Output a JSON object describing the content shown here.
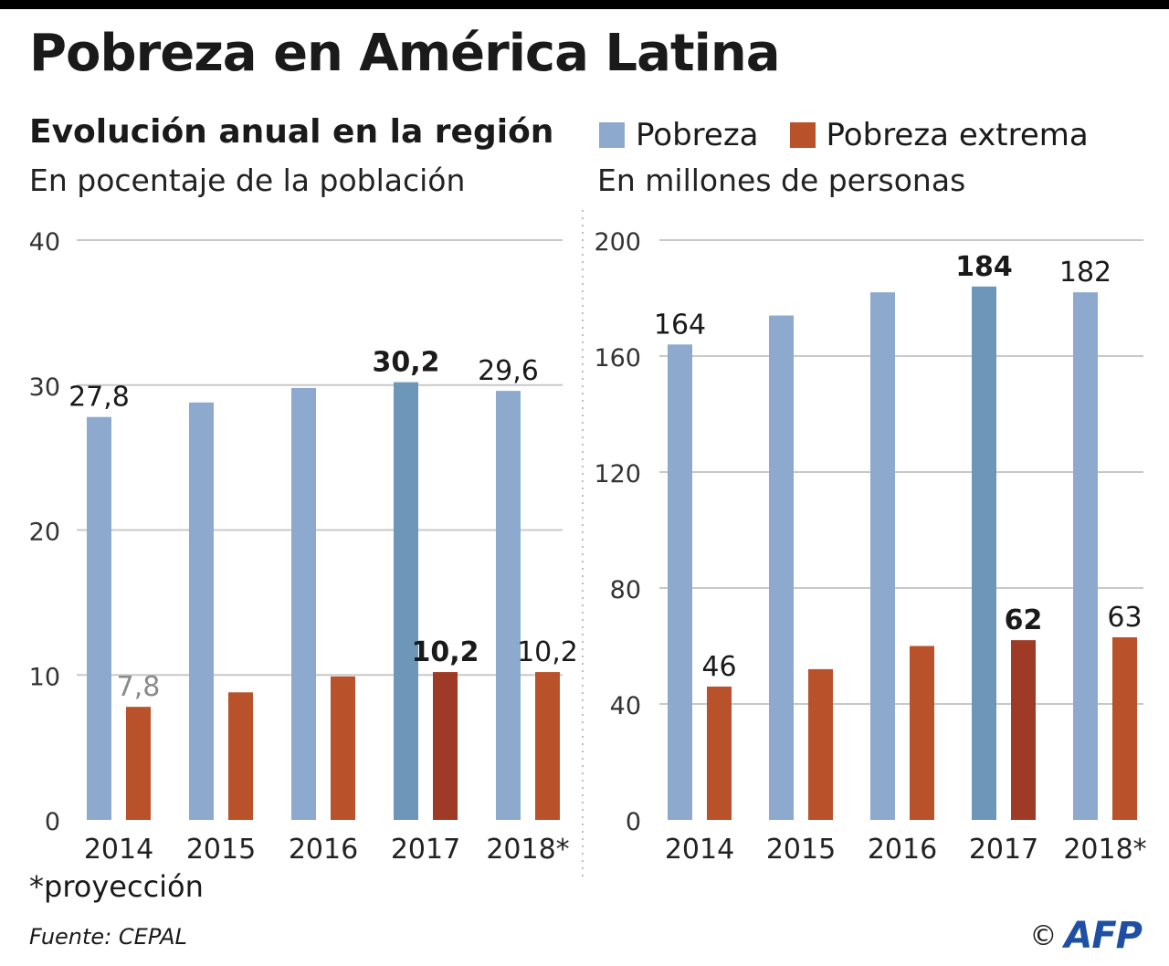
{
  "title": "Pobreza en América Latina",
  "subtitle": "Evolución anual en la región",
  "legend": {
    "pobreza": "Pobreza",
    "extrema": "Pobreza extrema"
  },
  "colors": {
    "pobreza": "#8daace",
    "pobreza_highlight": "#6e96b8",
    "extrema": "#b9522a",
    "extrema_highlight": "#9f3a26",
    "grid": "#c8c8c8"
  },
  "note": "*proyección",
  "source": "Fuente: CEPAL",
  "credit": {
    "symbol": "©",
    "agency": "AFP"
  },
  "chart_data": [
    {
      "type": "bar",
      "unit_label": "En pocentaje de la población",
      "categories": [
        "2014",
        "2015",
        "2016",
        "2017",
        "2018*"
      ],
      "ylim": [
        0,
        40
      ],
      "yticks": [
        "0",
        "10",
        "20",
        "30",
        "40"
      ],
      "highlight_index": 3,
      "series": [
        {
          "name": "Pobreza",
          "values": [
            27.8,
            28.8,
            29.8,
            30.2,
            29.6
          ],
          "labels": [
            "27,8",
            "",
            "",
            "30,2",
            "29,6"
          ]
        },
        {
          "name": "Pobreza extrema",
          "values": [
            7.8,
            8.8,
            9.9,
            10.2,
            10.2
          ],
          "labels": [
            "7,8",
            "",
            "",
            "10,2",
            "10,2"
          ]
        }
      ]
    },
    {
      "type": "bar",
      "unit_label": "En millones de personas",
      "categories": [
        "2014",
        "2015",
        "2016",
        "2017",
        "2018*"
      ],
      "ylim": [
        0,
        200
      ],
      "yticks": [
        "0",
        "40",
        "80",
        "120",
        "160",
        "200"
      ],
      "highlight_index": 3,
      "series": [
        {
          "name": "Pobreza",
          "values": [
            164,
            174,
            182,
            184,
            182
          ],
          "labels": [
            "164",
            "",
            "",
            "184",
            "182"
          ]
        },
        {
          "name": "Pobreza extrema",
          "values": [
            46,
            52,
            60,
            62,
            63
          ],
          "labels": [
            "46",
            "",
            "",
            "62",
            "63"
          ]
        }
      ]
    }
  ]
}
